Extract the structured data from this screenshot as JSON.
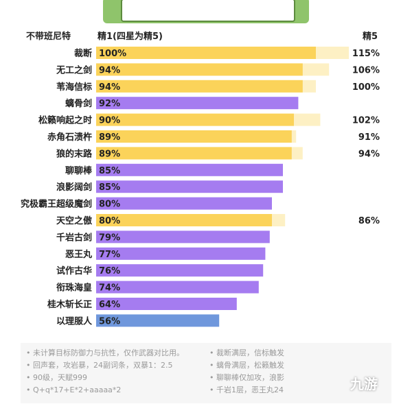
{
  "header": {
    "banner_title": "",
    "col_label_left": "不带班尼特",
    "col_label_mid": "精1(四星为精5)",
    "col_label_right": "精5"
  },
  "colors": {
    "yellow": "#fbd35a",
    "yellow_light": "#fdf0c4",
    "purple": "#a57cf0",
    "blue": "#6f97dc"
  },
  "chart_data": {
    "type": "bar",
    "xlim": [
      0,
      115
    ],
    "categories": [
      "裁断",
      "无工之剑",
      "苇海信标",
      "螭骨剑",
      "松籁响起之时",
      "赤角石溃杵",
      "狼的末路",
      "聊聊棒",
      "浪影阔剑",
      "究极霸王超级魔剑",
      "天空之傲",
      "千岩古剑",
      "恶王丸",
      "试作古华",
      "衔珠海皇",
      "桂木斩长正",
      "以理服人"
    ],
    "series": [
      {
        "values": [
          100,
          94,
          94,
          92,
          90,
          89,
          89,
          85,
          85,
          80,
          80,
          79,
          77,
          76,
          74,
          64,
          56
        ],
        "labels": [
          "100%",
          "94%",
          "94%",
          "92%",
          "90%",
          "89%",
          "89%",
          "85%",
          "85%",
          "80%",
          "80%",
          "79%",
          "77%",
          "76%",
          "74%",
          "64%",
          "56%"
        ],
        "colors": [
          "yellow",
          "yellow",
          "yellow",
          "purple",
          "yellow",
          "yellow",
          "yellow",
          "purple",
          "purple",
          "purple",
          "yellow",
          "purple",
          "purple",
          "purple",
          "purple",
          "purple",
          "blue"
        ]
      },
      {
        "values": [
          115,
          106,
          100,
          null,
          102,
          91,
          94,
          null,
          null,
          null,
          86,
          null,
          null,
          null,
          null,
          null,
          null
        ],
        "labels": [
          "115%",
          "106%",
          "100%",
          "",
          "102%",
          "91%",
          "94%",
          "",
          "",
          "",
          "86%",
          "",
          "",
          "",
          "",
          "",
          ""
        ]
      }
    ]
  },
  "footer": {
    "left": [
      "• 未计算目标防御力与抗性，仅作武器对比用。",
      "• 回声套，攻岩暴，24副词条，双暴1：2.5",
      "• 90级，天赋999",
      "• Q+q*17+E*2+aaaaa*2"
    ],
    "right": [
      "• 裁断满层，信标触发",
      "• 螭骨满层，松籁触发",
      "• 聊聊棒仅加攻，浪影",
      "• 千岩1层，恶王丸24"
    ]
  },
  "watermark": "九游"
}
